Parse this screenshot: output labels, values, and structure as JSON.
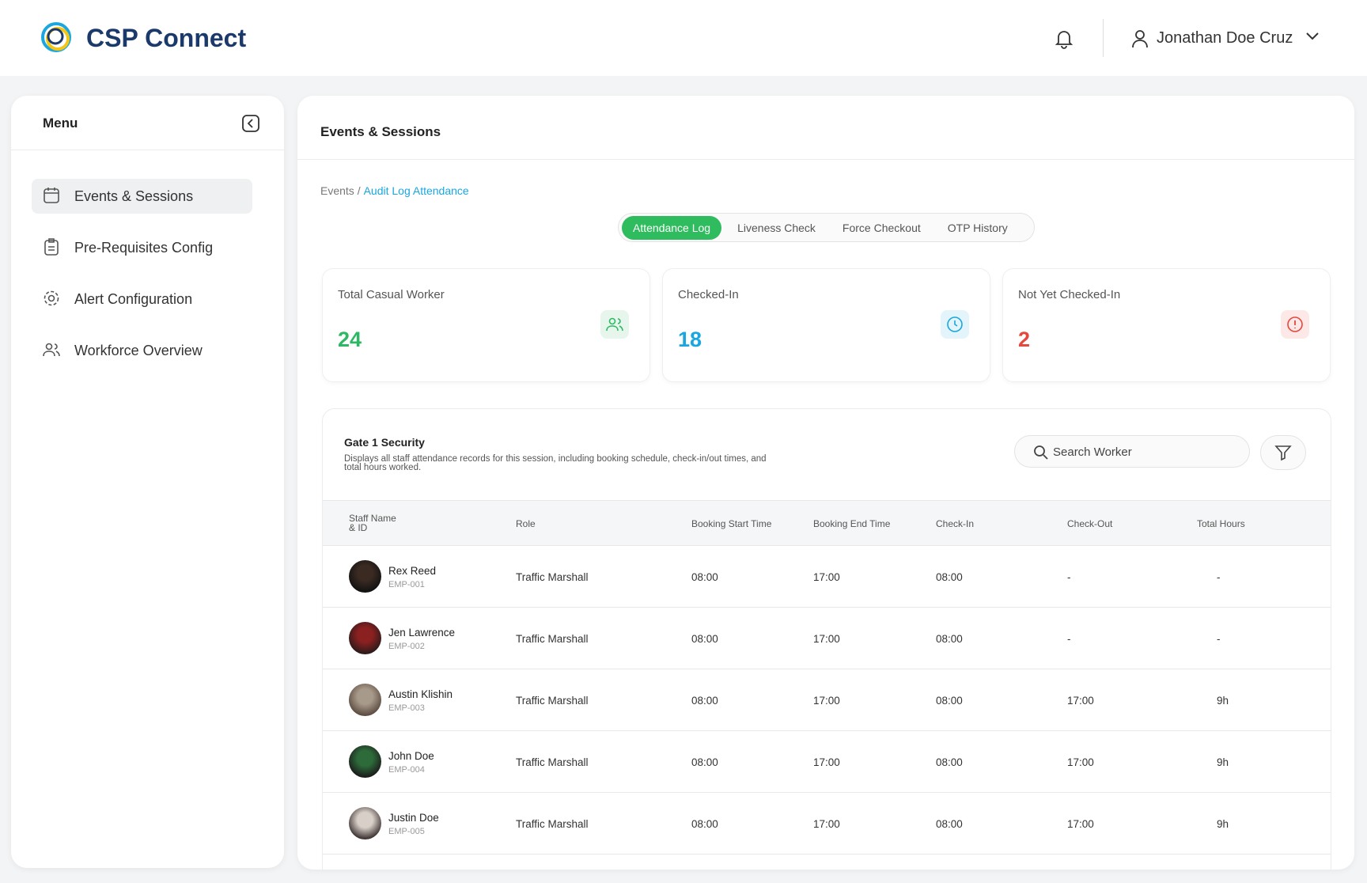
{
  "header": {
    "brand": "CSP Connect",
    "user": "Jonathan Doe Cruz"
  },
  "sidebar": {
    "title": "Menu",
    "items": [
      "Events & Sessions",
      "Pre-Requisites Config",
      "Alert Configuration",
      "Workforce Overview"
    ]
  },
  "page": {
    "title": "Events & Sessions",
    "breadcrumb": [
      "Events /",
      "Audit Log Attendance"
    ],
    "tabs": [
      "Attendance Log",
      "Liveness Check",
      "Force Checkout",
      "OTP History"
    ]
  },
  "stats": [
    {
      "label": "Total Casual Worker",
      "value": 24,
      "color": "#2fb864"
    },
    {
      "label": "Checked-In",
      "value": 18,
      "color": "#1aa7e0"
    },
    {
      "label": "Not Yet Checked-In",
      "value": 2,
      "color": "#e5483d"
    }
  ],
  "table": {
    "title": "Gate 1 Security",
    "description": "Displays all staff attendance records for this session, including booking schedule, check-in/out times, and total hours worked.",
    "search_placeholder": "Search Worker",
    "columns": [
      "Staff Name & ID",
      "Role",
      "Booking Start Time",
      "Booking End Time",
      "Check-In",
      "Check-Out",
      "Total Hours"
    ],
    "rows": [
      {
        "name": "Rex Reed",
        "id": "EMP-001",
        "role": "Traffic Marshall",
        "start": "08:00",
        "end": "17:00",
        "check_in": "08:00",
        "check_out": "-",
        "total": "-"
      },
      {
        "name": "Jen Lawrence",
        "id": "EMP-002",
        "role": "Traffic Marshall",
        "start": "08:00",
        "end": "17:00",
        "check_in": "08:00",
        "check_out": "-",
        "total": "-"
      },
      {
        "name": "Austin Klishin",
        "id": "EMP-003",
        "role": "Traffic Marshall",
        "start": "08:00",
        "end": "17:00",
        "check_in": "08:00",
        "check_out": "17:00",
        "total": "9h"
      },
      {
        "name": "John Doe",
        "id": "EMP-004",
        "role": "Traffic Marshall",
        "start": "08:00",
        "end": "17:00",
        "check_in": "08:00",
        "check_out": "17:00",
        "total": "9h"
      },
      {
        "name": "Justin Doe",
        "id": "EMP-005",
        "role": "Traffic Marshall",
        "start": "08:00",
        "end": "17:00",
        "check_in": "08:00",
        "check_out": "17:00",
        "total": "9h"
      }
    ]
  }
}
